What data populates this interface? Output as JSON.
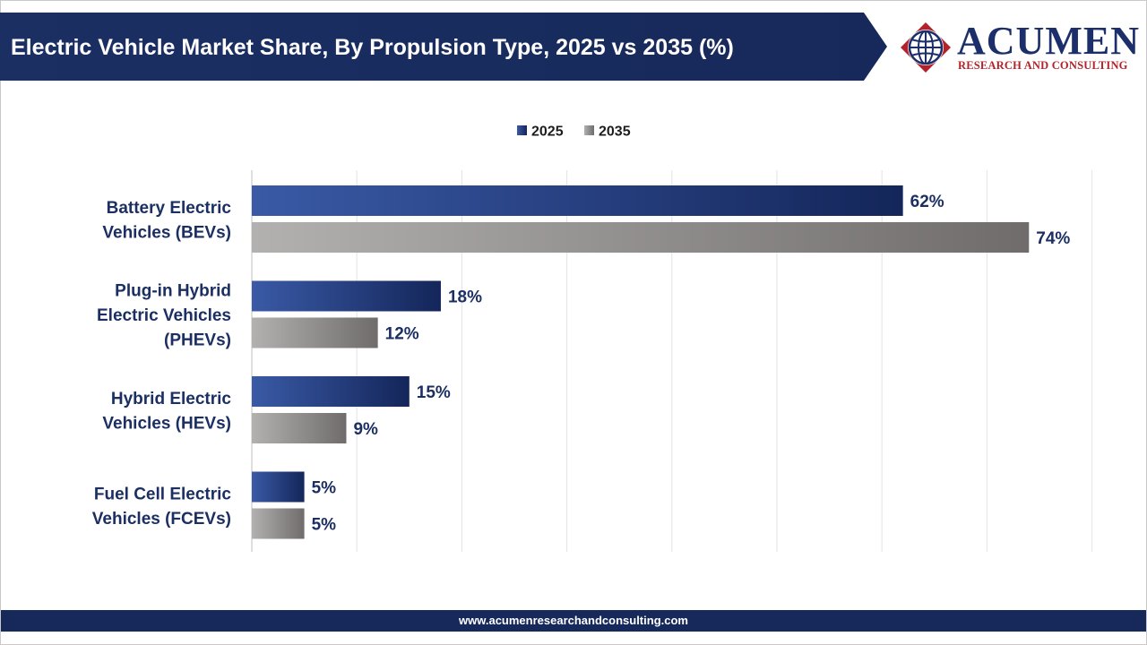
{
  "title": "Electric Vehicle Market Share, By Propulsion Type, 2025 vs 2035 (%)",
  "brand": {
    "name": "ACUMEN",
    "tagline": "RESEARCH AND CONSULTING",
    "logo_icon": "globe-icon",
    "colors": {
      "primary": "#1c2f6b",
      "accent": "#b3222a"
    }
  },
  "footer_url": "www.acumenresearchandconsulting.com",
  "chart_data": {
    "type": "bar",
    "orientation": "horizontal",
    "categories": [
      [
        "Battery Electric",
        "Vehicles (BEVs)"
      ],
      [
        "Plug-in Hybrid",
        "Electric Vehicles",
        "(PHEVs)"
      ],
      [
        "Hybrid Electric",
        "Vehicles (HEVs)"
      ],
      [
        "Fuel Cell Electric",
        "Vehicles (FCEVs)"
      ]
    ],
    "series": [
      {
        "name": "2025",
        "values": [
          62,
          18,
          15,
          5
        ],
        "labels": [
          "62%",
          "18%",
          "15%",
          "5%"
        ],
        "color": "#1f3a7a"
      },
      {
        "name": "2035",
        "values": [
          74,
          12,
          9,
          5
        ],
        "labels": [
          "74%",
          "12%",
          "9%",
          "5%"
        ],
        "color": "#8a8887"
      }
    ],
    "xlim": [
      0,
      80
    ],
    "grid": true,
    "legend_position": "top-center",
    "unit": "%"
  }
}
